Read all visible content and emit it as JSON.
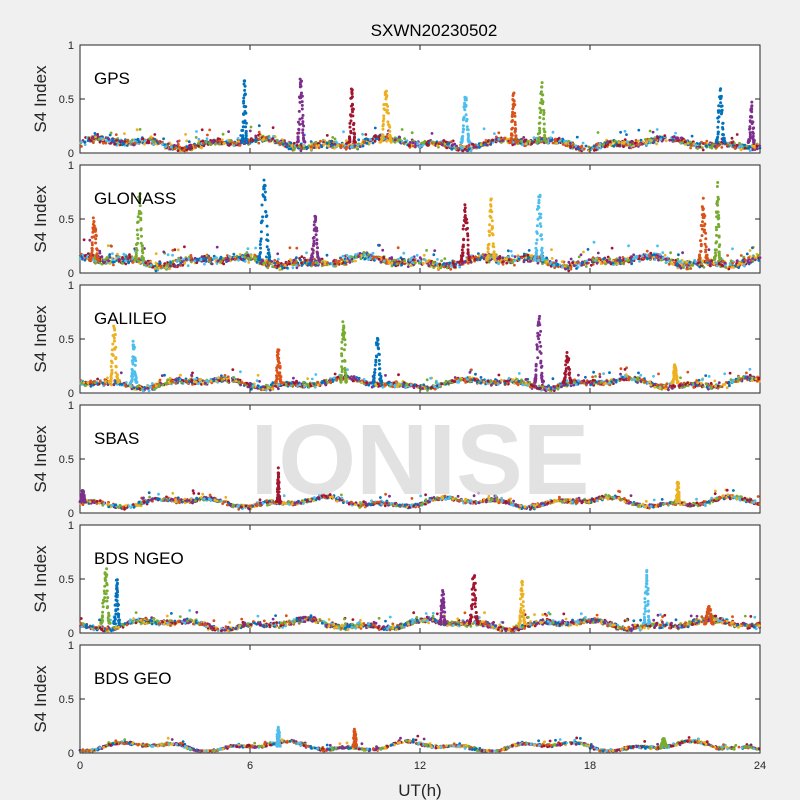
{
  "chart_data": {
    "type": "scatter",
    "title": "SXWN20230502",
    "xlabel": "UT(h)",
    "ylabel": "S4 Index",
    "xlim": [
      0,
      24
    ],
    "ylim": [
      0,
      1
    ],
    "xticks": [
      "0",
      "6",
      "12",
      "18",
      "24"
    ],
    "yticks": [
      "0",
      "0.5",
      "1"
    ],
    "grid": false,
    "watermark": "IONISE",
    "series_colors": [
      "#0072bd",
      "#d95319",
      "#edb120",
      "#7e2f8e",
      "#77ac30",
      "#4dbeee",
      "#a2142f"
    ],
    "panels": [
      {
        "label": "GPS",
        "baseline": 0.09,
        "noise": 0.05,
        "density": 2000,
        "bursts": [
          {
            "x": 5.8,
            "y": 0.7,
            "w": 0.2
          },
          {
            "x": 7.8,
            "y": 0.74,
            "w": 0.25
          },
          {
            "x": 9.6,
            "y": 0.63,
            "w": 0.2
          },
          {
            "x": 10.8,
            "y": 0.62,
            "w": 0.4
          },
          {
            "x": 13.6,
            "y": 0.55,
            "w": 0.3
          },
          {
            "x": 15.3,
            "y": 0.58,
            "w": 0.2
          },
          {
            "x": 16.3,
            "y": 0.66,
            "w": 0.3
          },
          {
            "x": 22.6,
            "y": 0.64,
            "w": 0.3
          },
          {
            "x": 23.7,
            "y": 0.48,
            "w": 0.2
          }
        ]
      },
      {
        "label": "GLONASS",
        "baseline": 0.11,
        "noise": 0.06,
        "density": 2000,
        "bursts": [
          {
            "x": 0.5,
            "y": 0.55,
            "w": 0.3
          },
          {
            "x": 2.1,
            "y": 0.75,
            "w": 0.3
          },
          {
            "x": 6.5,
            "y": 0.95,
            "w": 0.4
          },
          {
            "x": 8.3,
            "y": 0.55,
            "w": 0.3
          },
          {
            "x": 13.6,
            "y": 0.65,
            "w": 0.3
          },
          {
            "x": 14.5,
            "y": 0.7,
            "w": 0.3
          },
          {
            "x": 16.2,
            "y": 0.78,
            "w": 0.3
          },
          {
            "x": 22.0,
            "y": 0.7,
            "w": 0.3
          },
          {
            "x": 22.5,
            "y": 0.85,
            "w": 0.2
          }
        ]
      },
      {
        "label": "GALILEO",
        "baseline": 0.09,
        "noise": 0.04,
        "density": 1800,
        "bursts": [
          {
            "x": 1.2,
            "y": 0.64,
            "w": 0.3
          },
          {
            "x": 1.9,
            "y": 0.5,
            "w": 0.2
          },
          {
            "x": 7.0,
            "y": 0.42,
            "w": 0.2
          },
          {
            "x": 9.3,
            "y": 0.7,
            "w": 0.2
          },
          {
            "x": 10.5,
            "y": 0.55,
            "w": 0.3
          },
          {
            "x": 16.2,
            "y": 0.74,
            "w": 0.3
          },
          {
            "x": 17.2,
            "y": 0.38,
            "w": 0.3
          },
          {
            "x": 21.0,
            "y": 0.28,
            "w": 0.2
          }
        ]
      },
      {
        "label": "SBAS",
        "baseline": 0.1,
        "noise": 0.03,
        "density": 1600,
        "bursts": [
          {
            "x": 0.1,
            "y": 0.22,
            "w": 0.15
          },
          {
            "x": 7.0,
            "y": 0.42,
            "w": 0.1
          },
          {
            "x": 21.1,
            "y": 0.3,
            "w": 0.1
          }
        ]
      },
      {
        "label": "BDS NGEO",
        "baseline": 0.08,
        "noise": 0.04,
        "density": 1800,
        "bursts": [
          {
            "x": 0.9,
            "y": 0.65,
            "w": 0.3
          },
          {
            "x": 1.3,
            "y": 0.52,
            "w": 0.2
          },
          {
            "x": 12.8,
            "y": 0.4,
            "w": 0.2
          },
          {
            "x": 13.9,
            "y": 0.56,
            "w": 0.3
          },
          {
            "x": 15.6,
            "y": 0.52,
            "w": 0.2
          },
          {
            "x": 20.0,
            "y": 0.6,
            "w": 0.2
          },
          {
            "x": 22.2,
            "y": 0.26,
            "w": 0.3
          }
        ]
      },
      {
        "label": "BDS GEO",
        "baseline": 0.06,
        "noise": 0.02,
        "density": 1400,
        "bursts": [
          {
            "x": 7.0,
            "y": 0.26,
            "w": 0.1
          },
          {
            "x": 9.7,
            "y": 0.23,
            "w": 0.1
          },
          {
            "x": 20.6,
            "y": 0.14,
            "w": 0.2
          }
        ]
      }
    ]
  }
}
